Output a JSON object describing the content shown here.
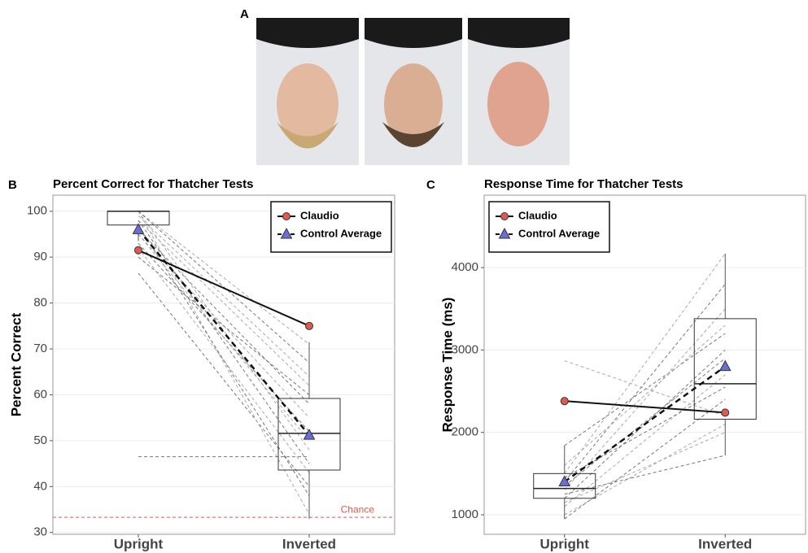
{
  "panels": [
    "A",
    "B",
    "C"
  ],
  "chart_data": [
    {
      "type": "box",
      "title": "Percent Correct for Thatcher Tests",
      "ylabel": "Percent Correct",
      "categories": [
        "Upright",
        "Inverted"
      ],
      "ylim": [
        29.6,
        103.5
      ],
      "yticks": [
        30,
        40,
        50,
        60,
        70,
        80,
        90,
        100
      ],
      "grid": true,
      "legend": "upper right",
      "series": [
        {
          "name": "Claudio",
          "color": "#e05a4f",
          "marker": "circle",
          "dash": false,
          "values": [
            91.5,
            75
          ]
        },
        {
          "name": "Control Average",
          "color": "#6a6fd8",
          "marker": "triangle",
          "dash": true,
          "values": [
            96,
            51.2
          ]
        }
      ],
      "boxes": [
        {
          "whisker_low": 93.5,
          "q1": 97,
          "median": 100,
          "q3": 100,
          "whisker_high": 100
        },
        {
          "whisker_low": 33,
          "q1": 43.6,
          "median": 51.6,
          "q3": 59.2,
          "whisker_high": 71.5
        }
      ],
      "subjects": [
        [
          100,
          71
        ],
        [
          100,
          67
        ],
        [
          98,
          62
        ],
        [
          96,
          58
        ],
        [
          95,
          55
        ],
        [
          93,
          52
        ],
        [
          100,
          48
        ],
        [
          98,
          45
        ],
        [
          92,
          43
        ],
        [
          86.5,
          40
        ],
        [
          100,
          34
        ],
        [
          97,
          38
        ],
        [
          95,
          50
        ],
        [
          90,
          60
        ],
        [
          99,
          64
        ],
        [
          46.5,
          46.5
        ]
      ],
      "annotation": {
        "text": "Chance",
        "value": 33.3,
        "color": "#e05a4f"
      }
    },
    {
      "type": "box",
      "title": "Response Time for Thatcher Tests",
      "ylabel": "Response Time (ms)",
      "categories": [
        "Upright",
        "Inverted"
      ],
      "ylim": [
        763,
        4879
      ],
      "yticks": [
        1000,
        2000,
        3000,
        4000
      ],
      "grid": true,
      "legend": "upper left",
      "series": [
        {
          "name": "Claudio",
          "color": "#e05a4f",
          "marker": "circle",
          "dash": false,
          "values": [
            2380,
            2240
          ]
        },
        {
          "name": "Control Average",
          "color": "#6a6fd8",
          "marker": "triangle",
          "dash": true,
          "values": [
            1400,
            2800
          ]
        }
      ],
      "boxes": [
        {
          "whisker_low": 950,
          "q1": 1200,
          "median": 1320,
          "q3": 1500,
          "whisker_high": 1840
        },
        {
          "whisker_low": 1720,
          "q1": 2160,
          "median": 2590,
          "q3": 3380,
          "whisker_high": 4170
        }
      ],
      "subjects": [
        [
          2870,
          2200
        ],
        [
          1840,
          3200
        ],
        [
          1500,
          4170
        ],
        [
          1400,
          3800
        ],
        [
          1300,
          3500
        ],
        [
          1200,
          3000
        ],
        [
          1100,
          2700
        ],
        [
          950,
          2400
        ],
        [
          1000,
          2100
        ],
        [
          1250,
          1720
        ],
        [
          1600,
          3300
        ],
        [
          1350,
          2900
        ],
        [
          1150,
          2000
        ],
        [
          1450,
          2550
        ]
      ]
    }
  ]
}
